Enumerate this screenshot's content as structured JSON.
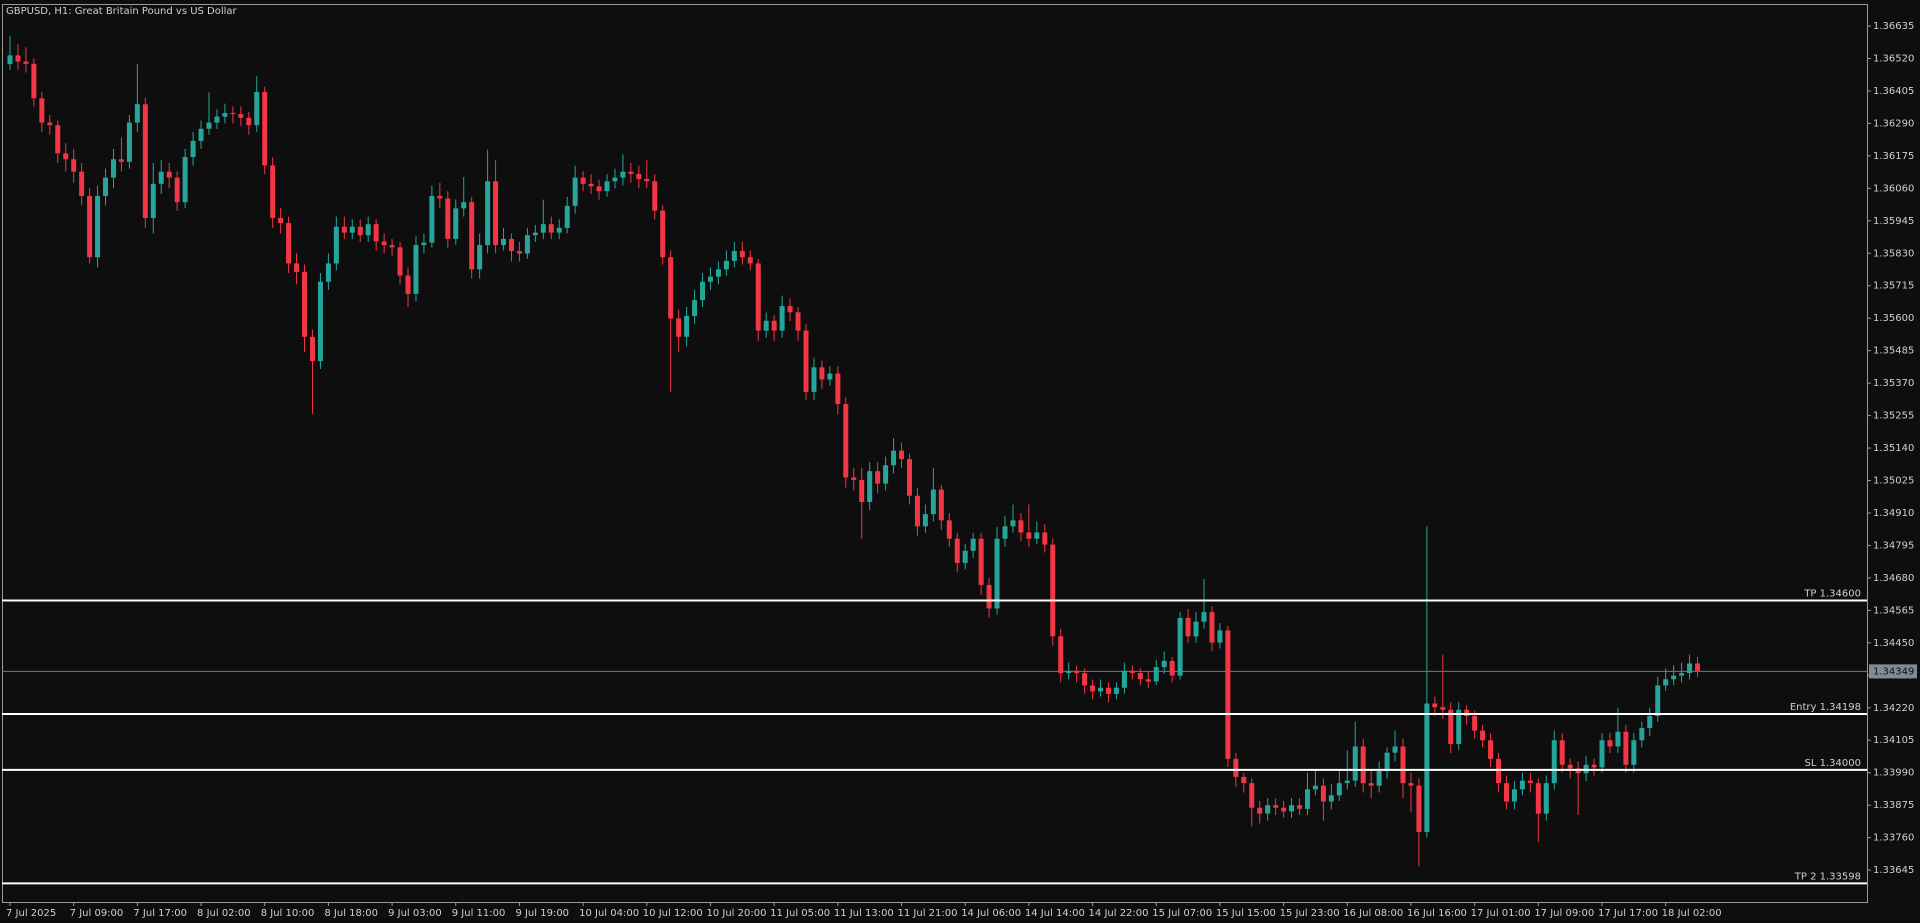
{
  "chart_data": {
    "type": "candlestick",
    "title": "GBPUSD, H1:  Great Britain Pound vs US Dollar",
    "up_color": "#26a69a",
    "down_color": "#f23645",
    "level_color": "#ffffff",
    "ylim": [
      1.33532,
      1.36713
    ],
    "yticks": [
      1.36635,
      {
        "value": 1.3652,
        "label": "1.36520"
      },
      1.36405,
      {
        "value": 1.3629,
        "label": "1.36290"
      },
      1.36175,
      {
        "value": 1.3606,
        "label": "1.36060"
      },
      1.35945,
      {
        "value": 1.3583,
        "label": "1.35830"
      },
      1.35715,
      {
        "value": 1.356,
        "label": "1.35600"
      },
      1.35485,
      {
        "value": 1.3537,
        "label": "1.35370"
      },
      1.35255,
      {
        "value": 1.3514,
        "label": "1.35140"
      },
      1.35025,
      {
        "value": 1.3491,
        "label": "1.34910"
      },
      1.34795,
      {
        "value": 1.3468,
        "label": "1.34680"
      },
      1.34565,
      {
        "value": 1.3445,
        "label": "1.34450"
      },
      1.34335,
      {
        "value": 1.3422,
        "label": "1.34220"
      },
      1.34105,
      {
        "value": 1.3399,
        "label": "1.33990"
      },
      1.33875,
      {
        "value": 1.3376,
        "label": "1.33760"
      },
      1.33645
    ],
    "last_price": 1.34349,
    "levels": [
      {
        "label": "TP 1.34600",
        "value": 1.346
      },
      {
        "label": "Entry 1.34198",
        "value": 1.34198
      },
      {
        "label": "SL 1.34000",
        "value": 1.34
      },
      {
        "label": "TP 2 1.33598",
        "value": 1.33598
      }
    ],
    "categories": [
      "7 Jul 2025",
      null,
      null,
      null,
      null,
      null,
      null,
      null,
      "7 Jul 09:00",
      null,
      null,
      null,
      null,
      null,
      null,
      null,
      "7 Jul 17:00",
      null,
      null,
      null,
      null,
      null,
      null,
      null,
      "8 Jul 02:00",
      null,
      null,
      null,
      null,
      null,
      null,
      null,
      "8 Jul 10:00",
      null,
      null,
      null,
      null,
      null,
      null,
      null,
      "8 Jul 18:00",
      null,
      null,
      null,
      null,
      null,
      null,
      null,
      "9 Jul 03:00",
      null,
      null,
      null,
      null,
      null,
      null,
      null,
      "9 Jul 11:00",
      null,
      null,
      null,
      null,
      null,
      null,
      null,
      "9 Jul 19:00",
      null,
      null,
      null,
      null,
      null,
      null,
      null,
      "10 Jul 04:00",
      null,
      null,
      null,
      null,
      null,
      null,
      null,
      "10 Jul 12:00",
      null,
      null,
      null,
      null,
      null,
      null,
      null,
      "10 Jul 20:00",
      null,
      null,
      null,
      null,
      null,
      null,
      null,
      "11 Jul 05:00",
      null,
      null,
      null,
      null,
      null,
      null,
      null,
      "11 Jul 13:00",
      null,
      null,
      null,
      null,
      null,
      null,
      null,
      "11 Jul 21:00",
      null,
      null,
      null,
      null,
      null,
      null,
      null,
      "14 Jul 06:00",
      null,
      null,
      null,
      null,
      null,
      null,
      null,
      "14 Jul 14:00",
      null,
      null,
      null,
      null,
      null,
      null,
      null,
      "14 Jul 22:00",
      null,
      null,
      null,
      null,
      null,
      null,
      null,
      "15 Jul 07:00",
      null,
      null,
      null,
      null,
      null,
      null,
      null,
      "15 Jul 15:00",
      null,
      null,
      null,
      null,
      null,
      null,
      null,
      "15 Jul 23:00",
      null,
      null,
      null,
      null,
      null,
      null,
      null,
      "16 Jul 08:00",
      null,
      null,
      null,
      null,
      null,
      null,
      null,
      "16 Jul 16:00",
      null,
      null,
      null,
      null,
      null,
      null,
      null,
      "17 Jul 01:00",
      null,
      null,
      null,
      null,
      null,
      null,
      null,
      "17 Jul 09:00",
      null,
      null,
      null,
      null,
      null,
      null,
      null,
      "17 Jul 17:00",
      null,
      null,
      null,
      null,
      null,
      null,
      null,
      "18 Jul 02:00",
      null,
      null,
      null,
      null
    ],
    "open": [
      1.365,
      1.36531,
      1.36509,
      1.36501,
      1.36379,
      1.36293,
      1.36284,
      1.36184,
      1.36163,
      1.36119,
      1.36033,
      1.35816,
      1.36033,
      1.36098,
      1.36163,
      1.36154,
      1.36293,
      1.36358,
      1.35955,
      1.36076,
      1.36119,
      1.36098,
      1.36011,
      1.36171,
      1.36228,
      1.36271,
      1.36293,
      1.36314,
      1.36327,
      1.36323,
      1.3631,
      1.36284,
      1.36401,
      1.36141,
      1.35955,
      1.35937,
      1.35794,
      1.35764,
      1.35534,
      1.35448,
      1.35729,
      1.35794,
      1.35924,
      1.35903,
      1.35924,
      1.35894,
      1.35933,
      1.35872,
      1.35859,
      1.35851,
      1.35751,
      1.35686,
      1.35859,
      1.35868,
      1.36033,
      1.36024,
      1.35881,
      1.35989,
      1.36011,
      1.35773,
      1.35859,
      1.36085,
      1.35859,
      1.35881,
      1.35838,
      1.35829,
      1.35894,
      1.35903,
      1.35933,
      1.35903,
      1.3592,
      1.35998,
      1.36098,
      1.36076,
      1.36067,
      1.3605,
      1.36085,
      1.36098,
      1.36119,
      1.36111,
      1.36093,
      1.36085,
      1.35981,
      1.35816,
      1.35599,
      1.35534,
      1.35608,
      1.35664,
      1.35729,
      1.35747,
      1.35773,
      1.35803,
      1.35838,
      1.35816,
      1.35794,
      1.35556,
      1.35591,
      1.35556,
      1.35643,
      1.35621,
      1.35556,
      1.35339,
      1.35426,
      1.35383,
      1.35404,
      1.35296,
      1.35036,
      1.35027,
      1.34949,
      1.35058,
      1.35014,
      1.35079,
      1.35131,
      1.35101,
      1.34971,
      1.34863,
      1.34906,
      1.34993,
      1.34884,
      1.34819,
      1.34733,
      1.34776,
      1.34819,
      1.34655,
      1.34572,
      1.34819,
      1.34863,
      1.34884,
      1.34841,
      1.34819,
      1.34841,
      1.34798,
      1.34473,
      1.34343,
      1.34351,
      1.34343,
      1.34299,
      1.34278,
      1.34291,
      1.34269,
      1.34291,
      1.34351,
      1.34343,
      1.34321,
      1.34313,
      1.34364,
      1.34386,
      1.34334,
      1.34538,
      1.34473,
      1.34525,
      1.34559,
      1.34451,
      1.34494,
      1.34039,
      1.33975,
      1.33953,
      1.33866,
      1.33845,
      1.33875,
      1.33866,
      1.33853,
      1.33875,
      1.33862,
      1.33931,
      1.33944,
      1.33888,
      1.3391,
      1.33953,
      1.33962,
      1.34083,
      1.33953,
      1.33944,
      1.33996,
      1.34061,
      1.34083,
      1.33953,
      1.33944,
      1.3378,
      1.34235,
      1.34222,
      1.34213,
      1.34092,
      1.34213,
      1.34191,
      1.34139,
      1.34105,
      1.34039,
      1.33953,
      1.33888,
      1.33931,
      1.33962,
      1.33953,
      1.33845,
      1.33953,
      1.34105,
      1.34018,
      1.34005,
      1.33988,
      1.34018,
      1.34009,
      1.34105,
      1.34083,
      1.34135,
      1.34018,
      1.34105,
      1.34148,
      1.34191,
      1.34299,
      1.34321,
      1.34334,
      1.34343,
      1.34377
    ],
    "high": [
      1.366,
      1.3657,
      1.3656,
      1.3652,
      1.364,
      1.3632,
      1.363,
      1.3622,
      1.362,
      1.3615,
      1.3606,
      1.3607,
      1.3613,
      1.362,
      1.3624,
      1.3632,
      1.365,
      1.3638,
      1.3615,
      1.3616,
      1.3615,
      1.3612,
      1.362,
      1.3626,
      1.363,
      1.364,
      1.3634,
      1.3636,
      1.3635,
      1.3635,
      1.3633,
      1.36457,
      1.3642,
      1.3617,
      1.3599,
      1.3596,
      1.3583,
      1.3579,
      1.3556,
      1.3576,
      1.3583,
      1.3596,
      1.3596,
      1.3595,
      1.3595,
      1.3596,
      1.3595,
      1.359,
      1.3588,
      1.3587,
      1.3578,
      1.3589,
      1.359,
      1.3607,
      1.3608,
      1.3605,
      1.3602,
      1.361,
      1.3603,
      1.359,
      1.36197,
      1.3616,
      1.3592,
      1.359,
      1.3587,
      1.3592,
      1.3593,
      1.3602,
      1.3596,
      1.3595,
      1.3603,
      1.3614,
      1.3612,
      1.3611,
      1.3609,
      1.3611,
      1.3613,
      1.3618,
      1.3615,
      1.3614,
      1.3616,
      1.3611,
      1.36,
      1.3584,
      1.3563,
      1.3564,
      1.357,
      1.3576,
      1.3578,
      1.358,
      1.3584,
      1.3587,
      1.3587,
      1.3584,
      1.3581,
      1.3562,
      1.3561,
      1.3568,
      1.3567,
      1.3564,
      1.3558,
      1.3546,
      1.3545,
      1.3543,
      1.3543,
      1.3532,
      1.3507,
      1.3507,
      1.3509,
      1.3509,
      1.3511,
      1.35175,
      1.3516,
      1.3512,
      1.35,
      1.3494,
      1.3507,
      1.3501,
      1.3491,
      1.3484,
      1.348,
      1.3484,
      1.3484,
      1.3468,
      1.3486,
      1.349,
      1.3494,
      1.3491,
      1.3494,
      1.3488,
      1.3487,
      1.3482,
      1.345,
      1.3438,
      1.3437,
      1.3436,
      1.3432,
      1.3432,
      1.3431,
      1.3431,
      1.3438,
      1.3437,
      1.3436,
      1.3435,
      1.3439,
      1.3442,
      1.344,
      1.3456,
      1.3457,
      1.3456,
      1.34676,
      1.3458,
      1.3452,
      1.3451,
      1.3406,
      1.3399,
      1.3397,
      1.3389,
      1.339,
      1.339,
      1.3389,
      1.339,
      1.339,
      1.3399,
      1.34,
      1.3397,
      1.3395,
      1.34,
      1.3407,
      1.3417,
      1.3411,
      1.34,
      1.3403,
      1.3408,
      1.3414,
      1.3411,
      1.3399,
      1.3397,
      1.34863,
      1.3426,
      1.34408,
      1.3424,
      1.3424,
      1.3423,
      1.3421,
      1.3416,
      1.3413,
      1.3406,
      1.3398,
      1.3396,
      1.3399,
      1.3399,
      1.3397,
      1.3398,
      1.3414,
      1.3413,
      1.3404,
      1.3403,
      1.3405,
      1.3404,
      1.3413,
      1.3413,
      1.3422,
      1.3416,
      1.3413,
      1.3417,
      1.3422,
      1.3433,
      1.3436,
      1.3437,
      1.3438,
      1.34408,
      1.344
    ],
    "low": [
      1.3648,
      1.3648,
      1.3647,
      1.3635,
      1.3626,
      1.3625,
      1.3615,
      1.3612,
      1.3608,
      1.36,
      1.35794,
      1.3578,
      1.36,
      1.3606,
      1.3612,
      1.3613,
      1.3626,
      1.3592,
      1.359,
      1.3604,
      1.3606,
      1.3598,
      1.3599,
      1.3614,
      1.362,
      1.3625,
      1.3627,
      1.3629,
      1.3629,
      1.3628,
      1.3625,
      1.3626,
      1.3611,
      1.3592,
      1.359,
      1.3576,
      1.3572,
      1.3548,
      1.35261,
      1.3542,
      1.357,
      1.3577,
      1.3588,
      1.3588,
      1.3587,
      1.3587,
      1.3584,
      1.3583,
      1.3582,
      1.3572,
      1.3564,
      1.3566,
      1.3583,
      1.3585,
      1.3599,
      1.3585,
      1.3586,
      1.3596,
      1.3574,
      1.3574,
      1.3583,
      1.3583,
      1.3584,
      1.358,
      1.358,
      1.3581,
      1.3587,
      1.3588,
      1.3588,
      1.3588,
      1.359,
      1.3597,
      1.3605,
      1.3604,
      1.3602,
      1.3603,
      1.3606,
      1.3607,
      1.3608,
      1.3606,
      1.3606,
      1.3595,
      1.3579,
      1.35339,
      1.3548,
      1.355,
      1.3558,
      1.3564,
      1.357,
      1.3572,
      1.3575,
      1.3578,
      1.3579,
      1.3577,
      1.3552,
      1.3553,
      1.3552,
      1.3553,
      1.3559,
      1.3552,
      1.3531,
      1.3531,
      1.3535,
      1.3536,
      1.3526,
      1.35,
      1.3499,
      1.34819,
      1.3492,
      1.3498,
      1.3499,
      1.3505,
      1.3507,
      1.3494,
      1.3483,
      1.3484,
      1.3488,
      1.3485,
      1.3479,
      1.347,
      1.3471,
      1.3475,
      1.3462,
      1.3454,
      1.3455,
      1.3479,
      1.3484,
      1.3481,
      1.3479,
      1.348,
      1.3477,
      1.3444,
      1.3431,
      1.3432,
      1.3431,
      1.3427,
      1.3425,
      1.3426,
      1.3424,
      1.3425,
      1.3427,
      1.3432,
      1.343,
      1.3429,
      1.343,
      1.3434,
      1.3431,
      1.3432,
      1.3445,
      1.3445,
      1.345,
      1.3442,
      1.3443,
      1.3401,
      1.3394,
      1.3392,
      1.338,
      1.3381,
      1.3382,
      1.3384,
      1.3383,
      1.3383,
      1.3384,
      1.3384,
      1.3391,
      1.3382,
      1.3386,
      1.3389,
      1.3393,
      1.3394,
      1.3392,
      1.339,
      1.3392,
      1.3397,
      1.3403,
      1.339,
      1.3385,
      1.33658,
      1.3376,
      1.3419,
      1.3418,
      1.3406,
      1.3407,
      1.3416,
      1.3411,
      1.3408,
      1.3401,
      1.3392,
      1.3386,
      1.3386,
      1.3391,
      1.3392,
      1.33745,
      1.3382,
      1.3393,
      1.3399,
      1.3397,
      1.3384,
      1.3396,
      1.3398,
      1.3399,
      1.3406,
      1.3406,
      1.3399,
      1.3399,
      1.3408,
      1.3412,
      1.3417,
      1.3428,
      1.343,
      1.3431,
      1.3432,
      1.3433
    ],
    "close": [
      1.36531,
      1.36509,
      1.36501,
      1.36379,
      1.36293,
      1.36284,
      1.36184,
      1.36163,
      1.36119,
      1.36033,
      1.35816,
      1.36033,
      1.36098,
      1.36163,
      1.36154,
      1.36293,
      1.36358,
      1.35955,
      1.36076,
      1.36119,
      1.36098,
      1.36011,
      1.36171,
      1.36228,
      1.36271,
      1.36293,
      1.36314,
      1.36327,
      1.36323,
      1.3631,
      1.36284,
      1.36401,
      1.36141,
      1.35955,
      1.35937,
      1.35794,
      1.35764,
      1.35534,
      1.35448,
      1.35729,
      1.35794,
      1.35924,
      1.35903,
      1.35924,
      1.35894,
      1.35933,
      1.35872,
      1.35859,
      1.35851,
      1.35751,
      1.35686,
      1.35859,
      1.35868,
      1.36033,
      1.36024,
      1.35881,
      1.35989,
      1.36011,
      1.35773,
      1.35859,
      1.36085,
      1.35859,
      1.35881,
      1.35838,
      1.35829,
      1.35894,
      1.35903,
      1.35933,
      1.35903,
      1.3592,
      1.35998,
      1.36098,
      1.36076,
      1.36067,
      1.3605,
      1.36085,
      1.36098,
      1.36119,
      1.36111,
      1.36093,
      1.36085,
      1.35981,
      1.35816,
      1.35599,
      1.35534,
      1.35608,
      1.35664,
      1.35729,
      1.35747,
      1.35773,
      1.35803,
      1.35838,
      1.35816,
      1.35794,
      1.35556,
      1.35591,
      1.35556,
      1.35643,
      1.35621,
      1.35556,
      1.35339,
      1.35426,
      1.35383,
      1.35404,
      1.35296,
      1.35036,
      1.35027,
      1.34949,
      1.35058,
      1.35014,
      1.35079,
      1.35131,
      1.35101,
      1.34971,
      1.34863,
      1.34906,
      1.34993,
      1.34884,
      1.34819,
      1.34733,
      1.34776,
      1.34819,
      1.34655,
      1.34572,
      1.34819,
      1.34863,
      1.34884,
      1.34841,
      1.34819,
      1.34841,
      1.34798,
      1.34473,
      1.34343,
      1.34351,
      1.34343,
      1.34299,
      1.34278,
      1.34291,
      1.34269,
      1.34291,
      1.34351,
      1.34343,
      1.34321,
      1.34313,
      1.34364,
      1.34386,
      1.34334,
      1.34538,
      1.34473,
      1.34525,
      1.34559,
      1.34451,
      1.34494,
      1.34039,
      1.33975,
      1.33953,
      1.33866,
      1.33845,
      1.33875,
      1.33866,
      1.33853,
      1.33875,
      1.33862,
      1.33931,
      1.33944,
      1.33888,
      1.3391,
      1.33953,
      1.33962,
      1.34083,
      1.33953,
      1.33944,
      1.33996,
      1.34061,
      1.34083,
      1.33953,
      1.33944,
      1.3378,
      1.34235,
      1.34222,
      1.34213,
      1.34092,
      1.34213,
      1.34191,
      1.34139,
      1.34105,
      1.34039,
      1.33953,
      1.33888,
      1.33931,
      1.33962,
      1.33953,
      1.33845,
      1.33953,
      1.34105,
      1.34018,
      1.34005,
      1.33988,
      1.34018,
      1.34009,
      1.34105,
      1.34083,
      1.34135,
      1.34018,
      1.34105,
      1.34148,
      1.34191,
      1.34299,
      1.34321,
      1.34334,
      1.34343,
      1.34377,
      1.34349
    ]
  }
}
